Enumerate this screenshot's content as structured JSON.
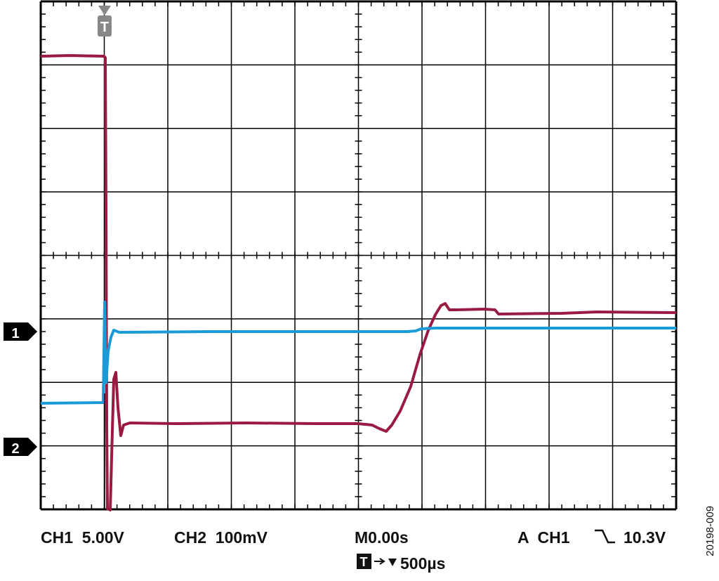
{
  "channel_markers": [
    "1",
    "2"
  ],
  "trigger_marker": "T",
  "readout": {
    "ch1": "CH1  5.00V",
    "ch2": "CH2  100mV",
    "main": "M0.00s",
    "trigger_source": "A  CH1",
    "trigger_level": "10.3V",
    "trigger_icon": "T",
    "timebase": "500µs"
  },
  "figure_id": "20198-009"
}
